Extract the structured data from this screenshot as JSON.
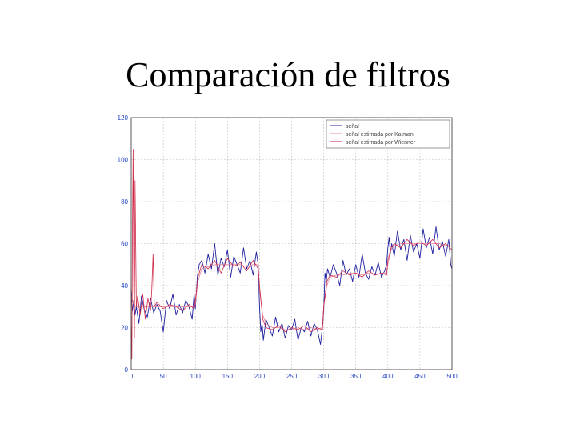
{
  "slide": {
    "title": "Comparación de filtros"
  },
  "colors": {
    "grid": "#bbbbbb",
    "axis": "#333333",
    "tick": "#1f3fbf"
  },
  "chart_data": {
    "type": "line",
    "xlim": [
      0,
      500
    ],
    "ylim": [
      0,
      120
    ],
    "xticks": [
      0,
      50,
      100,
      150,
      200,
      250,
      300,
      350,
      400,
      450,
      500
    ],
    "yticks": [
      0,
      20,
      40,
      60,
      80,
      100,
      120
    ],
    "grid": true,
    "legend_position": "top-right",
    "series": [
      {
        "name": "señal",
        "color": "#2020a0",
        "x": [
          0,
          2,
          4,
          6,
          8,
          12,
          16,
          20,
          25,
          30,
          35,
          40,
          45,
          50,
          55,
          60,
          65,
          70,
          75,
          80,
          85,
          90,
          95,
          98,
          100,
          103,
          106,
          110,
          115,
          120,
          125,
          130,
          135,
          140,
          145,
          150,
          155,
          160,
          165,
          170,
          175,
          180,
          185,
          190,
          195,
          198,
          200,
          202,
          204,
          206,
          210,
          215,
          220,
          225,
          230,
          235,
          240,
          245,
          250,
          255,
          260,
          265,
          270,
          275,
          280,
          285,
          290,
          295,
          298,
          300,
          302,
          304,
          306,
          310,
          315,
          320,
          325,
          330,
          335,
          340,
          345,
          350,
          355,
          360,
          365,
          370,
          375,
          380,
          385,
          390,
          395,
          398,
          400,
          402,
          404,
          406,
          410,
          415,
          420,
          425,
          430,
          435,
          440,
          445,
          450,
          455,
          460,
          465,
          470,
          475,
          480,
          485,
          490,
          495,
          498,
          500
        ],
        "y": [
          38,
          28,
          33,
          26,
          30,
          22,
          35,
          29,
          25,
          34,
          27,
          31,
          28,
          18,
          33,
          29,
          36,
          26,
          31,
          27,
          33,
          30,
          24,
          36,
          29,
          44,
          50,
          52,
          46,
          55,
          48,
          60,
          45,
          53,
          49,
          57,
          44,
          54,
          50,
          46,
          58,
          48,
          52,
          45,
          56,
          50,
          30,
          18,
          22,
          14,
          24,
          20,
          16,
          25,
          18,
          22,
          15,
          21,
          19,
          24,
          14,
          20,
          18,
          23,
          16,
          22,
          19,
          12,
          20,
          28,
          46,
          42,
          48,
          44,
          50,
          46,
          40,
          52,
          45,
          48,
          42,
          50,
          44,
          55,
          46,
          43,
          49,
          45,
          51,
          44,
          47,
          50,
          58,
          63,
          55,
          60,
          54,
          66,
          57,
          62,
          52,
          64,
          56,
          60,
          53,
          67,
          58,
          63,
          55,
          68,
          57,
          61,
          54,
          62,
          50,
          48
        ]
      },
      {
        "name": "señal estimada por Kalman",
        "color": "#e08898",
        "x": [
          0,
          3,
          6,
          10,
          20,
          30,
          40,
          50,
          60,
          70,
          80,
          90,
          98,
          100,
          104,
          110,
          120,
          130,
          140,
          150,
          160,
          170,
          180,
          190,
          198,
          200,
          205,
          210,
          220,
          230,
          240,
          250,
          260,
          270,
          280,
          290,
          298,
          300,
          305,
          310,
          320,
          330,
          340,
          350,
          360,
          370,
          380,
          390,
          398,
          400,
          405,
          410,
          420,
          430,
          440,
          450,
          460,
          470,
          480,
          490,
          500
        ],
        "y": [
          35,
          32,
          30,
          30,
          30,
          30,
          30,
          30,
          30,
          30,
          30,
          30,
          30,
          31,
          42,
          48,
          49,
          50,
          50,
          50,
          50,
          50,
          49,
          50,
          50,
          38,
          26,
          22,
          20,
          20,
          19,
          19,
          20,
          19,
          20,
          19,
          20,
          30,
          40,
          44,
          45,
          45,
          46,
          46,
          45,
          46,
          45,
          46,
          46,
          50,
          57,
          59,
          60,
          60,
          60,
          60,
          60,
          60,
          60,
          59,
          59
        ]
      },
      {
        "name": "señal estimada por Wienner",
        "color": "#d02848",
        "x": [
          0,
          1,
          2,
          3,
          4,
          5,
          6,
          8,
          10,
          14,
          18,
          22,
          26,
          30,
          32,
          34,
          36,
          40,
          50,
          60,
          70,
          80,
          90,
          98,
          100,
          104,
          110,
          120,
          130,
          140,
          150,
          160,
          170,
          180,
          190,
          198,
          200,
          205,
          210,
          220,
          230,
          240,
          250,
          260,
          270,
          280,
          290,
          298,
          300,
          305,
          310,
          320,
          330,
          340,
          350,
          360,
          370,
          380,
          390,
          398,
          400,
          405,
          410,
          420,
          430,
          440,
          450,
          460,
          470,
          480,
          490,
          500
        ],
        "y": [
          20,
          5,
          70,
          105,
          40,
          15,
          90,
          30,
          35,
          26,
          36,
          24,
          34,
          28,
          38,
          55,
          30,
          32,
          29,
          31,
          30,
          28,
          31,
          29,
          33,
          44,
          50,
          48,
          52,
          46,
          53,
          49,
          51,
          47,
          52,
          48,
          40,
          24,
          20,
          19,
          21,
          18,
          20,
          19,
          21,
          18,
          20,
          19,
          30,
          42,
          45,
          44,
          47,
          45,
          46,
          44,
          47,
          45,
          46,
          45,
          52,
          58,
          60,
          58,
          62,
          59,
          61,
          59,
          62,
          58,
          60,
          57
        ]
      }
    ]
  }
}
